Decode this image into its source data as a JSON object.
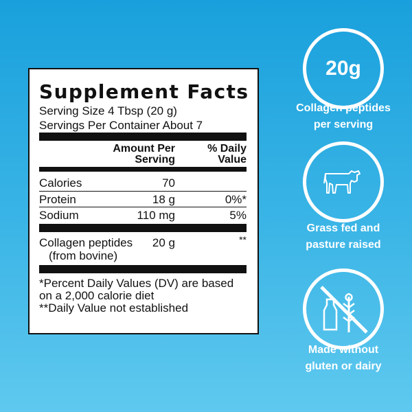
{
  "label": {
    "title": "Supplement Facts",
    "serving_size": "Serving Size 4 Tbsp (20 g)",
    "servings_per_container": "Servings Per Container About 7",
    "header_amount": [
      "Amount Per",
      "Serving"
    ],
    "header_dv": [
      "% Daily",
      "Value"
    ],
    "rows": [
      {
        "name": "Calories",
        "amount": "70",
        "dv": ""
      },
      {
        "name": "Protein",
        "amount": "18 g",
        "dv": "0%*"
      },
      {
        "name": "Sodium",
        "amount": "110 mg",
        "dv": "5%"
      },
      {
        "name": "Collagen peptides",
        "sub": "(from bovine)",
        "amount": "20 g",
        "dv": "**"
      }
    ],
    "footnotes": [
      "*Percent Daily Values (DV) are based",
      "on a 2,000 calorie diet",
      "**Daily Value not established"
    ]
  },
  "badges": [
    {
      "icon": "20g-text",
      "value": "20g",
      "caption": [
        "Collagen peptides",
        "per serving"
      ]
    },
    {
      "icon": "cow-icon",
      "caption": [
        "Grass fed and",
        "pasture raised"
      ]
    },
    {
      "icon": "no-dairy-gluten-icon",
      "caption": [
        "Made without",
        "gluten or dairy"
      ]
    }
  ],
  "colors": {
    "background_top": "#19a0dc",
    "background_bottom": "#5fc9ef",
    "label_bg": "#ffffff",
    "text": "#111111"
  }
}
